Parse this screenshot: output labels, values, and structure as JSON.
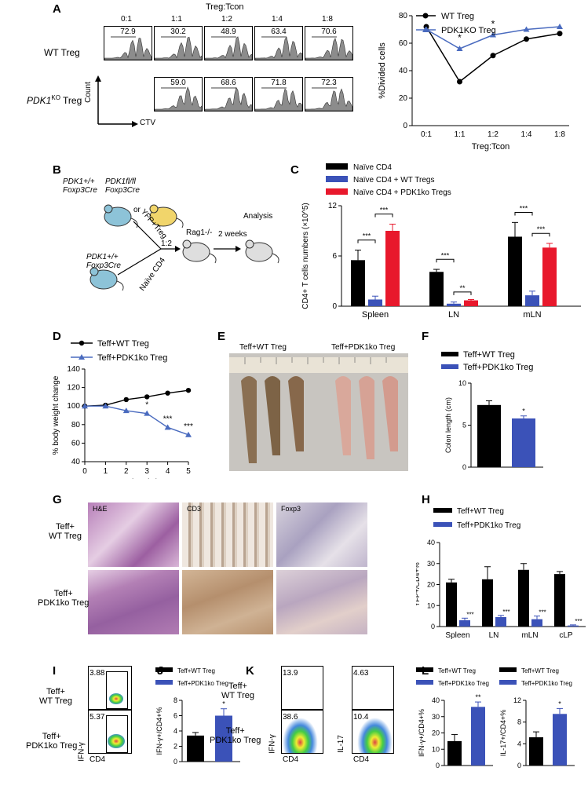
{
  "panel_letters": [
    "A",
    "B",
    "C",
    "D",
    "E",
    "F",
    "G",
    "H",
    "I",
    "J",
    "K",
    "L"
  ],
  "panelA": {
    "header": "Treg:Tcon",
    "ratios": [
      "0:1",
      "1:1",
      "1:2",
      "1:4",
      "1:8"
    ],
    "row_wt": "WT Treg",
    "row_ko_gene": "PDK1",
    "row_ko_sup": "KO",
    "row_ko_suffix": " Treg",
    "wt_values": [
      "72.9",
      "30.2",
      "48.9",
      "63.4",
      "70.6"
    ],
    "ko_values": [
      "59.0",
      "68.6",
      "71.8",
      "72.3"
    ],
    "axis_y": "Count",
    "axis_x": "CTV"
  },
  "panelB": {
    "m1_line1": "PDK1+/+",
    "m1_line2": "Foxp3Cre",
    "or": "or",
    "m2_line1": "PDK1fl/fl",
    "m2_line2": "Foxp3Cre",
    "m3_line1": "PDK1+/+",
    "m3_line2": "Foxp3Cre",
    "yfp": "YFP+Treg",
    "naive": "Naïve CD4",
    "ratio": "1:2",
    "rag": "Rag1-/-",
    "weeks": "2 weeks",
    "analysis": "Analysis"
  },
  "panelG": {
    "col_he": "H&E",
    "col_cd3": "CD3",
    "col_foxp3": "Foxp3",
    "row1_a": "Teff+",
    "row1_b": "WT Treg",
    "row2_a": "Teff+",
    "row2_b": "PDK1ko Treg"
  },
  "panelE": {
    "leg1": "Teff+WT Treg",
    "leg2": "Teff+PDK1ko Treg"
  },
  "panelI": {
    "row1_a": "Teff+",
    "row1_b": "WT Treg",
    "row2_a": "Teff+",
    "row2_b": "PDK1ko Treg",
    "val1": "3.88",
    "val2": "5.37",
    "y": "IFN-γ",
    "x": "CD4"
  },
  "panelK": {
    "row1_a": "Teff+",
    "row1_b": "WT Treg",
    "row2_a": "Teff+",
    "row2_b": "PDK1ko Treg",
    "ifn1": "13.9",
    "il1": "4.63",
    "ifn2": "38.6",
    "il2": "10.4",
    "y1": "IFN-γ",
    "y2": "IL-17",
    "x": "CD4"
  },
  "colors": {
    "black": "#000000",
    "blue": "#3b52b8",
    "red": "#e8182c",
    "lineBlue": "#4a6bbf"
  },
  "chart_data": [
    {
      "id": "A-line",
      "type": "line",
      "categories": [
        "0:1",
        "1:1",
        "1:2",
        "1:4",
        "1:8"
      ],
      "series": [
        {
          "name": "WT Treg",
          "values": [
            72,
            32,
            51,
            63,
            67
          ]
        },
        {
          "name": "PDK1KO Treg",
          "values": [
            70,
            56,
            66,
            70,
            72
          ]
        }
      ],
      "asterisks": [
        "1:1",
        "1:2"
      ],
      "xlabel": "Treg:Tcon",
      "ylabel": "%Divided cells",
      "ylim": [
        0,
        80
      ],
      "yticks": [
        0,
        20,
        40,
        60,
        80
      ],
      "legend": "top-right"
    },
    {
      "id": "C-bar",
      "type": "bar",
      "categories": [
        "Spleen",
        "LN",
        "mLN"
      ],
      "series": [
        {
          "name": "Naïve CD4",
          "values": [
            5.5,
            4.1,
            8.3
          ],
          "err": [
            1.2,
            0.3,
            1.7
          ]
        },
        {
          "name": "Naïve CD4 + WT Tregs",
          "values": [
            0.8,
            0.3,
            1.3
          ],
          "err": [
            0.4,
            0.2,
            0.5
          ]
        },
        {
          "name": "Naïve CD4 + PDK1ko Tregs",
          "values": [
            9.0,
            0.7,
            7.0
          ],
          "err": [
            0.8,
            0.1,
            0.5
          ]
        }
      ],
      "ylabel": "CD4+ T cells numbers (×10^5)",
      "ylim": [
        0,
        12
      ],
      "yticks": [
        0,
        6,
        12
      ],
      "sig": [
        "***",
        "***",
        "***",
        "**",
        "***",
        "***"
      ]
    },
    {
      "id": "D-line",
      "type": "line",
      "x": [
        0,
        1,
        2,
        3,
        4,
        5
      ],
      "series": [
        {
          "name": "Teff+WT Treg",
          "values": [
            100,
            101,
            107,
            110,
            114,
            117
          ]
        },
        {
          "name": "Teff+PDK1ko Treg",
          "values": [
            100,
            100,
            95,
            92,
            77,
            69
          ]
        }
      ],
      "asterisks": [
        {
          "x": 2,
          "text": "*"
        },
        {
          "x": 3,
          "text": "*"
        },
        {
          "x": 4,
          "text": "***"
        },
        {
          "x": 5,
          "text": "***"
        }
      ],
      "xlabel": "(weeks)",
      "ylabel": "% body weight change",
      "ylim": [
        40,
        140
      ],
      "yticks": [
        40,
        60,
        80,
        100,
        120,
        140
      ]
    },
    {
      "id": "F-bar",
      "type": "bar",
      "categories": [
        "Teff+WT Treg",
        "Teff+PDK1ko Treg"
      ],
      "values": [
        7.4,
        5.8
      ],
      "err": [
        0.5,
        0.3
      ],
      "ylabel": "Colon length (cm)",
      "ylim": [
        0,
        10
      ],
      "yticks": [
        0,
        5,
        10
      ],
      "sig": "*"
    },
    {
      "id": "H-bar",
      "type": "bar",
      "categories": [
        "Spleen",
        "LN",
        "mLN",
        "cLP"
      ],
      "series": [
        {
          "name": "Teff+WT Treg",
          "values": [
            21,
            22.5,
            27,
            25
          ],
          "err": [
            1.5,
            6,
            3,
            1.2
          ]
        },
        {
          "name": "Teff+PDK1ko Treg",
          "values": [
            3,
            4.5,
            3.5,
            0.5
          ],
          "err": [
            1,
            0.8,
            1.5,
            0.3
          ]
        }
      ],
      "ylabel": "YFP+/CD4+%",
      "ylim": [
        0,
        40
      ],
      "yticks": [
        0,
        10,
        20,
        30,
        40
      ],
      "sig": "***"
    },
    {
      "id": "J-bar",
      "type": "bar",
      "categories": [
        "Teff+WT Treg",
        "Teff+PDK1ko Treg"
      ],
      "values": [
        3.4,
        6.0
      ],
      "err": [
        0.4,
        0.9
      ],
      "ylabel": "IFN-γ+/CD4+%",
      "ylim": [
        0,
        8
      ],
      "yticks": [
        0,
        2,
        4,
        6,
        8
      ],
      "sig": "*"
    },
    {
      "id": "L1-bar",
      "type": "bar",
      "categories": [
        "Teff+WT Treg",
        "Teff+PDK1ko Treg"
      ],
      "values": [
        15,
        36
      ],
      "err": [
        4,
        3
      ],
      "ylabel": "IFN-γ+/CD4+%",
      "ylim": [
        0,
        40
      ],
      "yticks": [
        0,
        10,
        20,
        30,
        40
      ],
      "sig": "**"
    },
    {
      "id": "L2-bar",
      "type": "bar",
      "categories": [
        "Teff+WT Treg",
        "Teff+PDK1ko Treg"
      ],
      "values": [
        5.2,
        9.5
      ],
      "err": [
        1,
        1
      ],
      "ylabel": "IL-17+/CD4+%",
      "ylim": [
        0,
        12
      ],
      "yticks": [
        0,
        4,
        8,
        12
      ],
      "sig": "*"
    }
  ]
}
